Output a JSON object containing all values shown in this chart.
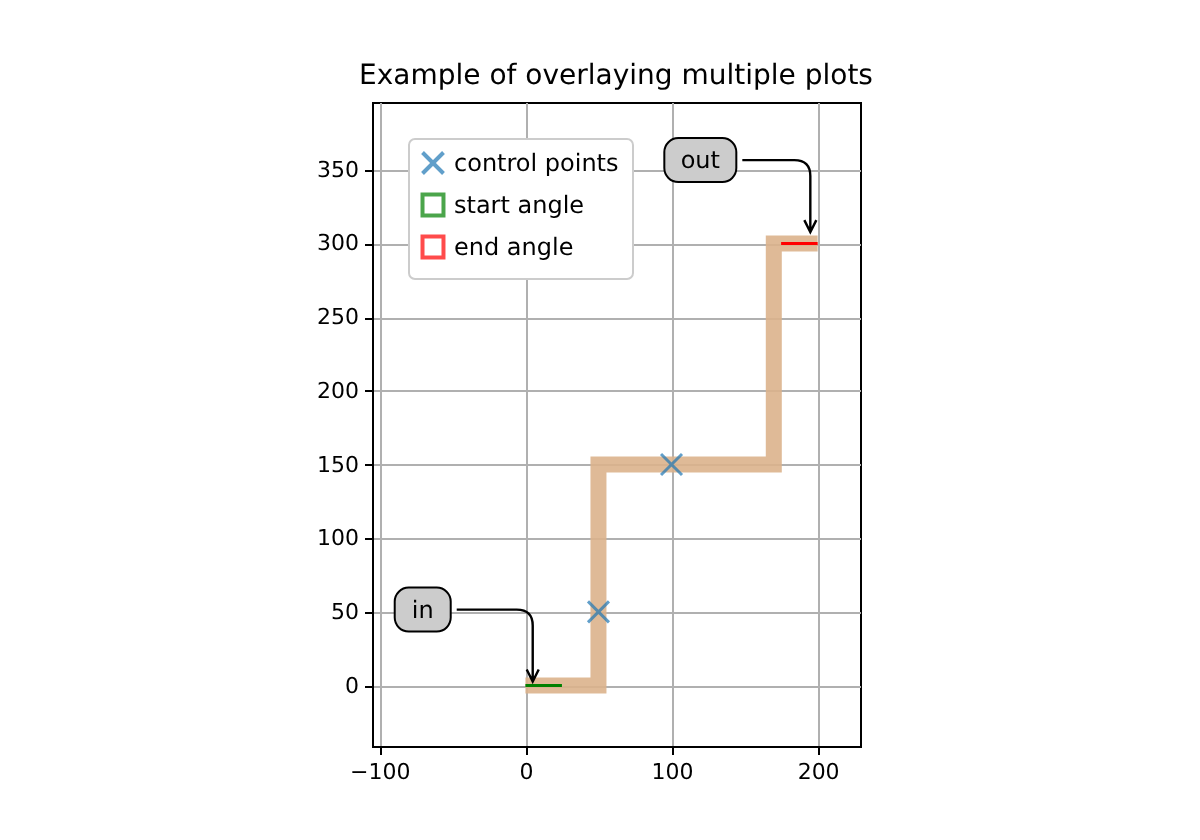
{
  "chart_data": {
    "type": "line",
    "title": "Example of overlaying multiple plots",
    "xlim": [
      -105,
      229
    ],
    "xticks": [
      -100,
      0,
      100,
      200
    ],
    "ylim": [
      -41,
      396
    ],
    "yticks": [
      0,
      50,
      100,
      150,
      200,
      250,
      300,
      350
    ],
    "grid": true,
    "legend": "top left",
    "line_style": "solid",
    "series": [
      {
        "color": "#dcb38c",
        "x": [
          0,
          50,
          50,
          170,
          170,
          200
        ],
        "values": [
          0,
          0,
          150,
          150,
          300,
          300
        ]
      },
      {
        "type": "scatter",
        "name": "control points",
        "color": "#1f77b4",
        "marker": "cross",
        "x": [
          50,
          100
        ],
        "values": [
          50,
          150
        ]
      },
      {
        "name": "start angle",
        "color": "#008000",
        "x": [
          0,
          25
        ],
        "values": [
          0,
          0
        ]
      },
      {
        "name": "end angle",
        "color": "#ff0000",
        "x": [
          200,
          175
        ],
        "values": [
          300,
          300
        ]
      }
    ],
    "annotations": [
      {
        "text": "in",
        "x": 5,
        "y": 0
      },
      {
        "text": "out",
        "x": 195,
        "y": 305
      }
    ]
  }
}
